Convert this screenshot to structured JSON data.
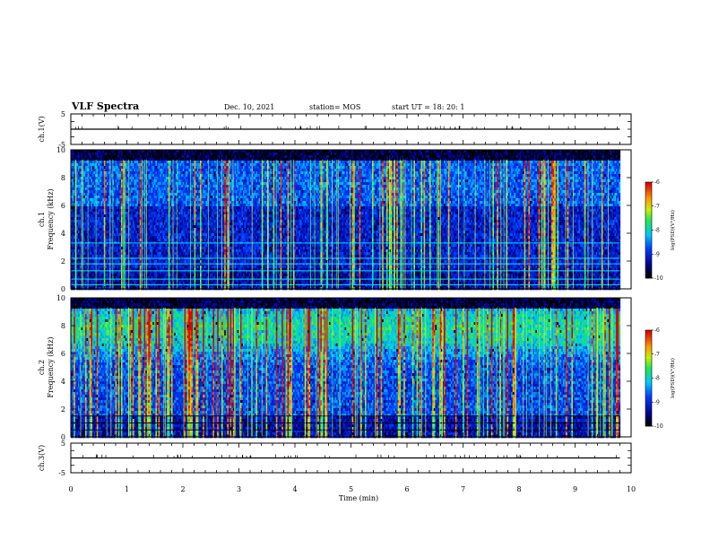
{
  "header": {
    "title": "VLF Spectra",
    "date": "Dec. 10, 2021",
    "station": "station= MOS",
    "start": "start  UT =   18: 20: 1"
  },
  "chart_data": [
    {
      "type": "line",
      "name": "ch1-voltage",
      "ylabel": "ch.1(V)",
      "ylim": [
        -5,
        5
      ],
      "ytick_labels": [
        "5",
        "-5"
      ],
      "xlim": [
        0,
        10
      ],
      "x": [
        0,
        9.8
      ],
      "y": [
        0,
        0
      ]
    },
    {
      "type": "heatmap",
      "name": "ch1-spectrogram",
      "ylabel_1": "ch.1",
      "ylabel_2": "Frequency (kHz)",
      "xlim": [
        0,
        10
      ],
      "ylim": [
        0,
        10
      ],
      "ytick_labels": [
        "0",
        "2",
        "4",
        "6",
        "8",
        "10"
      ],
      "data_end_min": 9.8,
      "colorbar": {
        "label": "log(PSD)(V²/Hz)",
        "range": [
          -10,
          -6
        ],
        "tick_labels": [
          "-6",
          "-7",
          "-8",
          "-9",
          "-10"
        ]
      }
    },
    {
      "type": "heatmap",
      "name": "ch2-spectrogram",
      "ylabel_1": "ch.2",
      "ylabel_2": "Frequency (kHz)",
      "xlim": [
        0,
        10
      ],
      "ylim": [
        0,
        10
      ],
      "ytick_labels": [
        "0",
        "2",
        "4",
        "6",
        "8",
        "10"
      ],
      "data_end_min": 9.8,
      "colorbar": {
        "label": "log(PSD)(V²/Hz)",
        "range": [
          -10,
          -6
        ],
        "tick_labels": [
          "-6",
          "-7",
          "-8",
          "-9",
          "-10"
        ]
      }
    },
    {
      "type": "line",
      "name": "ch3-voltage",
      "ylabel": "ch.3(V)",
      "ylim": [
        -5,
        5
      ],
      "ytick_labels": [
        "5",
        "-5"
      ],
      "xlim": [
        0,
        10
      ],
      "x": [
        0,
        9.8
      ],
      "y": [
        0,
        0
      ]
    }
  ],
  "xaxis": {
    "label": "Time  (min)",
    "ticks": [
      0,
      1,
      2,
      3,
      4,
      5,
      6,
      7,
      8,
      9,
      10
    ],
    "tick_labels": [
      "0",
      "1",
      "2",
      "3",
      "4",
      "5",
      "6",
      "7",
      "8",
      "9",
      "10"
    ]
  }
}
